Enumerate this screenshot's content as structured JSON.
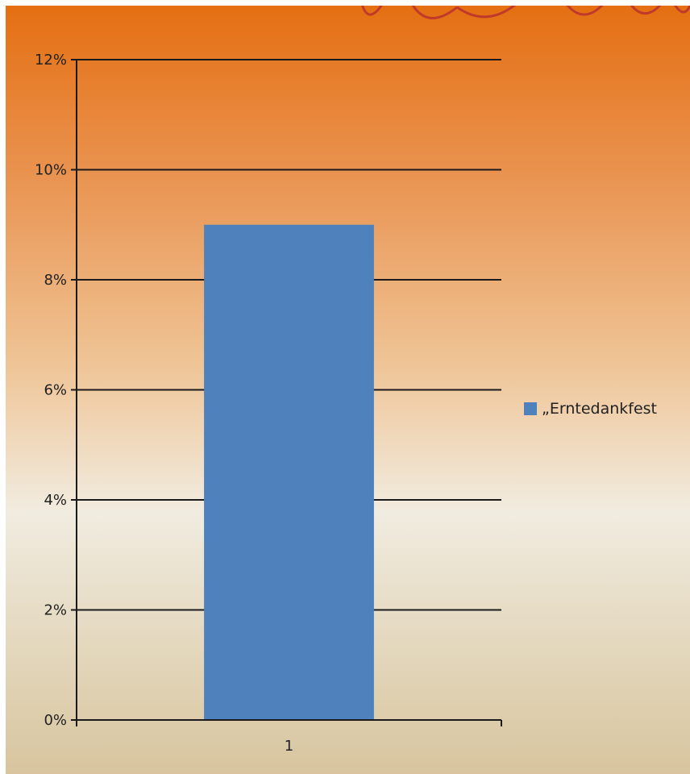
{
  "chart_data": {
    "type": "bar",
    "categories": [
      "1"
    ],
    "series": [
      {
        "name": "„Erntedankfest",
        "values": [
          9
        ],
        "color": "#4f81bd"
      }
    ],
    "ylim": [
      0,
      12
    ],
    "yticks": [
      0,
      2,
      4,
      6,
      8,
      10,
      12
    ],
    "ytick_labels": [
      "0%",
      "2%",
      "4%",
      "6%",
      "8%",
      "10%",
      "12%"
    ],
    "grid": true,
    "legend_position": "right",
    "title": "",
    "xlabel": "",
    "ylabel": ""
  },
  "colors": {
    "gridline": "#1a1a1a",
    "axis": "#1a1a1a",
    "decoration": "#c0392b"
  }
}
